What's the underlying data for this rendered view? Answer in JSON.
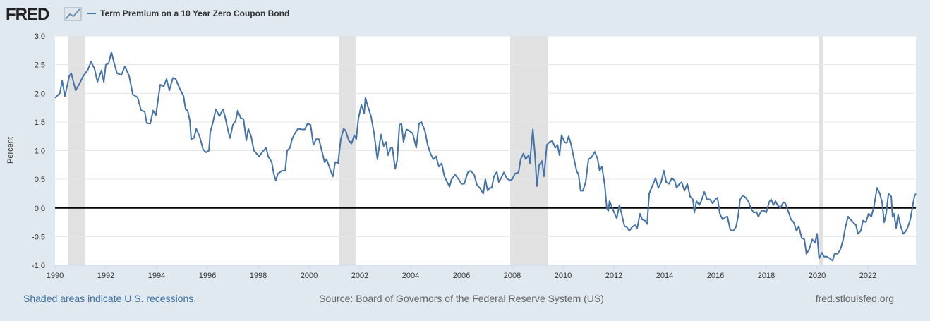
{
  "chart_data": {
    "type": "line",
    "logo": "FRED",
    "y_label": "Percent",
    "recession_note": "Shaded areas indicate U.S. recessions.",
    "source": "Source: Board of Governors of the Federal Reserve System (US)",
    "site": "fred.stlouisfed.org",
    "xlim": [
      1990,
      2023.89
    ],
    "xticks": [
      1990,
      1992,
      1994,
      1996,
      1998,
      2000,
      2002,
      2004,
      2006,
      2008,
      2010,
      2012,
      2014,
      2016,
      2018,
      2020,
      2022
    ],
    "ylim": [
      -1,
      3
    ],
    "yticks": [
      {
        "value": -1,
        "label": "-1.0"
      },
      -0.5,
      {
        "value": 0,
        "label": "0.0"
      },
      0.5,
      {
        "value": 1,
        "label": "1.0"
      },
      1.5,
      {
        "value": 2,
        "label": "2.0"
      },
      2.5,
      {
        "value": 3,
        "label": "3.0"
      }
    ],
    "grid": true,
    "zero_line_color": "#000000",
    "recession_color": "#e1e1e1",
    "recessions": [
      [
        1990.5,
        1991.17
      ],
      [
        2001.17,
        2001.83
      ],
      [
        2007.92,
        2009.42
      ],
      [
        2020.08,
        2020.25
      ]
    ],
    "x": [
      1990.0,
      1990.19,
      1990.28,
      1990.39,
      1990.56,
      1990.64,
      1990.81,
      1990.94,
      1991.11,
      1991.28,
      1991.42,
      1991.56,
      1991.67,
      1991.83,
      1991.92,
      1992.0,
      1992.11,
      1992.22,
      1992.33,
      1992.44,
      1992.61,
      1992.75,
      1992.92,
      1993.06,
      1993.25,
      1993.39,
      1993.53,
      1993.61,
      1993.75,
      1993.86,
      1993.97,
      1994.14,
      1994.28,
      1994.39,
      1994.5,
      1994.64,
      1994.75,
      1994.89,
      1995.06,
      1995.14,
      1995.22,
      1995.31,
      1995.36,
      1995.47,
      1995.56,
      1995.69,
      1995.83,
      1995.94,
      1996.06,
      1996.11,
      1996.22,
      1996.33,
      1996.47,
      1996.61,
      1996.69,
      1996.81,
      1996.89,
      1997.0,
      1997.11,
      1997.19,
      1997.31,
      1997.42,
      1997.53,
      1997.61,
      1997.72,
      1997.83,
      1998.03,
      1998.17,
      1998.31,
      1998.39,
      1998.53,
      1998.61,
      1998.69,
      1998.78,
      1998.94,
      1999.06,
      1999.14,
      1999.25,
      1999.33,
      1999.44,
      1999.56,
      1999.72,
      1999.83,
      1999.94,
      2000.06,
      2000.17,
      2000.28,
      2000.39,
      2000.5,
      2000.61,
      2000.69,
      2000.81,
      2000.89,
      2000.94,
      2001.03,
      2001.14,
      2001.25,
      2001.36,
      2001.44,
      2001.56,
      2001.67,
      2001.78,
      2001.86,
      2001.94,
      2002.06,
      2002.17,
      2002.22,
      2002.33,
      2002.44,
      2002.56,
      2002.69,
      2002.83,
      2002.94,
      2003.03,
      2003.11,
      2003.22,
      2003.28,
      2003.39,
      2003.47,
      2003.56,
      2003.64,
      2003.72,
      2003.83,
      2003.94,
      2004.08,
      2004.22,
      2004.33,
      2004.42,
      2004.56,
      2004.67,
      2004.78,
      2004.89,
      2005.0,
      2005.11,
      2005.22,
      2005.33,
      2005.44,
      2005.53,
      2005.61,
      2005.75,
      2005.89,
      2006.0,
      2006.11,
      2006.25,
      2006.36,
      2006.5,
      2006.61,
      2006.72,
      2006.86,
      2006.94,
      2007.03,
      2007.11,
      2007.19,
      2007.28,
      2007.39,
      2007.47,
      2007.56,
      2007.67,
      2007.78,
      2007.89,
      2008.0,
      2008.11,
      2008.25,
      2008.33,
      2008.44,
      2008.53,
      2008.64,
      2008.69,
      2008.81,
      2008.89,
      2008.97,
      2009.06,
      2009.17,
      2009.25,
      2009.36,
      2009.47,
      2009.58,
      2009.69,
      2009.78,
      2009.86,
      2009.94,
      2010.06,
      2010.14,
      2010.22,
      2010.31,
      2010.42,
      2010.53,
      2010.61,
      2010.69,
      2010.78,
      2010.89,
      2011.0,
      2011.11,
      2011.25,
      2011.36,
      2011.44,
      2011.53,
      2011.64,
      2011.72,
      2011.78,
      2011.83,
      2011.92,
      2012.03,
      2012.11,
      2012.22,
      2012.33,
      2012.42,
      2012.5,
      2012.61,
      2012.72,
      2012.83,
      2012.92,
      2013.03,
      2013.11,
      2013.22,
      2013.31,
      2013.39,
      2013.53,
      2013.64,
      2013.75,
      2013.86,
      2013.97,
      2014.06,
      2014.17,
      2014.28,
      2014.39,
      2014.47,
      2014.58,
      2014.67,
      2014.78,
      2014.89,
      2015.0,
      2015.11,
      2015.17,
      2015.25,
      2015.36,
      2015.44,
      2015.56,
      2015.67,
      2015.78,
      2015.89,
      2016.0,
      2016.08,
      2016.17,
      2016.28,
      2016.39,
      2016.47,
      2016.58,
      2016.69,
      2016.81,
      2016.89,
      2016.97,
      2017.08,
      2017.19,
      2017.31,
      2017.39,
      2017.5,
      2017.61,
      2017.69,
      2017.81,
      2017.92,
      2018.0,
      2018.11,
      2018.19,
      2018.28,
      2018.36,
      2018.44,
      2018.56,
      2018.67,
      2018.75,
      2018.86,
      2018.97,
      2019.08,
      2019.19,
      2019.28,
      2019.39,
      2019.5,
      2019.58,
      2019.69,
      2019.81,
      2019.92,
      2020.0,
      2020.08,
      2020.19,
      2020.28,
      2020.39,
      2020.5,
      2020.61,
      2020.69,
      2020.81,
      2020.92,
      2021.03,
      2021.11,
      2021.22,
      2021.31,
      2021.42,
      2021.53,
      2021.61,
      2021.72,
      2021.81,
      2021.92,
      2022.03,
      2022.14,
      2022.25,
      2022.36,
      2022.47,
      2022.56,
      2022.64,
      2022.72,
      2022.81,
      2022.92,
      2022.97,
      2023.03,
      2023.11,
      2023.19,
      2023.28,
      2023.39,
      2023.47,
      2023.56,
      2023.67,
      2023.75,
      2023.83,
      2023.89
    ],
    "series": [
      {
        "name": "Term Premium on a 10 Year Zero Coupon Bond",
        "color": "#4572a7",
        "values": [
          1.92,
          2.0,
          2.22,
          1.95,
          2.3,
          2.35,
          2.05,
          2.15,
          2.3,
          2.4,
          2.55,
          2.42,
          2.2,
          2.4,
          2.2,
          2.5,
          2.52,
          2.72,
          2.52,
          2.35,
          2.32,
          2.47,
          2.3,
          1.98,
          1.93,
          1.7,
          1.68,
          1.48,
          1.47,
          1.7,
          1.62,
          2.15,
          2.12,
          2.25,
          2.05,
          2.27,
          2.25,
          2.1,
          1.95,
          1.72,
          1.7,
          1.52,
          1.2,
          1.22,
          1.38,
          1.25,
          1.02,
          0.97,
          1.0,
          1.32,
          1.5,
          1.72,
          1.6,
          1.72,
          1.6,
          1.35,
          1.22,
          1.45,
          1.52,
          1.7,
          1.57,
          1.55,
          1.18,
          1.38,
          1.25,
          1.0,
          0.9,
          0.98,
          1.05,
          0.9,
          0.8,
          0.6,
          0.48,
          0.6,
          0.65,
          0.65,
          1.0,
          1.05,
          1.2,
          1.3,
          1.38,
          1.37,
          1.37,
          1.47,
          1.45,
          1.1,
          1.2,
          1.2,
          1.0,
          0.8,
          0.85,
          0.7,
          0.6,
          0.55,
          0.8,
          0.78,
          1.2,
          1.38,
          1.35,
          1.18,
          1.12,
          1.27,
          1.2,
          1.55,
          1.8,
          1.65,
          1.92,
          1.75,
          1.6,
          1.3,
          0.85,
          1.28,
          1.08,
          1.15,
          0.92,
          1.05,
          1.05,
          0.68,
          0.83,
          1.45,
          1.47,
          1.15,
          1.37,
          1.35,
          1.3,
          1.05,
          1.47,
          1.5,
          1.35,
          1.1,
          0.95,
          0.85,
          0.9,
          0.72,
          0.78,
          0.55,
          0.45,
          0.37,
          0.5,
          0.58,
          0.5,
          0.42,
          0.42,
          0.62,
          0.65,
          0.58,
          0.4,
          0.35,
          0.25,
          0.5,
          0.3,
          0.35,
          0.35,
          0.55,
          0.63,
          0.45,
          0.52,
          0.62,
          0.52,
          0.48,
          0.5,
          0.6,
          0.62,
          0.85,
          0.95,
          0.85,
          0.92,
          0.78,
          1.37,
          0.95,
          0.38,
          0.75,
          0.82,
          0.55,
          1.1,
          1.15,
          1.17,
          1.05,
          1.1,
          0.92,
          1.27,
          1.15,
          1.13,
          1.25,
          1.12,
          0.88,
          0.65,
          0.58,
          0.3,
          0.3,
          0.45,
          0.85,
          0.88,
          0.98,
          0.85,
          0.65,
          0.72,
          0.4,
          0.0,
          -0.05,
          0.12,
          0.02,
          -0.1,
          -0.18,
          0.05,
          -0.15,
          -0.32,
          -0.33,
          -0.4,
          -0.33,
          -0.3,
          -0.35,
          -0.1,
          -0.2,
          -0.22,
          -0.28,
          0.25,
          0.4,
          0.52,
          0.35,
          0.45,
          0.65,
          0.45,
          0.42,
          0.52,
          0.48,
          0.35,
          0.42,
          0.45,
          0.3,
          0.42,
          0.2,
          0.15,
          -0.08,
          0.12,
          0.05,
          0.12,
          0.28,
          0.15,
          0.15,
          0.08,
          0.15,
          0.18,
          -0.1,
          -0.2,
          -0.16,
          -0.15,
          -0.38,
          -0.4,
          -0.33,
          -0.15,
          0.15,
          0.22,
          0.18,
          0.1,
          0.0,
          -0.08,
          -0.07,
          -0.15,
          -0.05,
          -0.05,
          -0.08,
          0.1,
          0.15,
          0.05,
          0.12,
          0.05,
          0.0,
          0.1,
          0.08,
          -0.05,
          -0.2,
          -0.25,
          -0.4,
          -0.32,
          -0.52,
          -0.55,
          -0.8,
          -0.72,
          -0.55,
          -0.6,
          -0.45,
          -0.88,
          -0.78,
          -0.85,
          -0.85,
          -0.88,
          -0.92,
          -0.8,
          -0.8,
          -0.72,
          -0.55,
          -0.35,
          -0.15,
          -0.2,
          -0.25,
          -0.3,
          -0.45,
          -0.4,
          -0.22,
          -0.25,
          -0.1,
          -0.15,
          0.05,
          0.35,
          0.25,
          0.1,
          -0.25,
          -0.1,
          0.25,
          0.2,
          -0.15,
          -0.1,
          -0.35,
          -0.12,
          -0.3,
          -0.45,
          -0.42,
          -0.35,
          -0.2,
          0.0,
          0.2,
          0.25
        ]
      }
    ]
  }
}
